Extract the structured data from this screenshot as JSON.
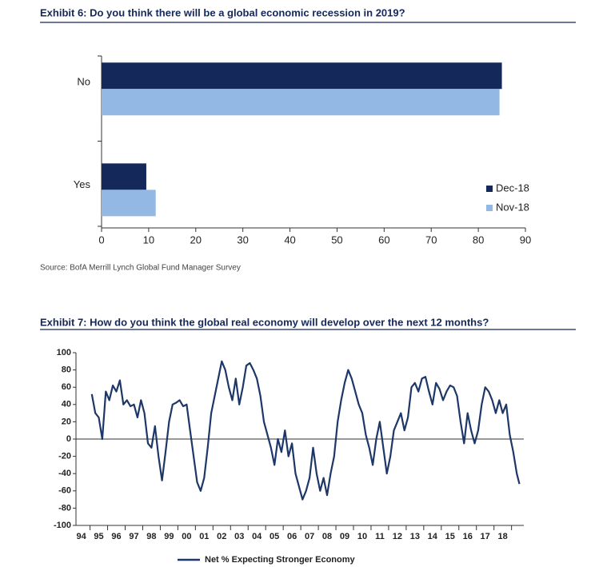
{
  "chart_data": [
    {
      "type": "barh",
      "title": "Exhibit 6: Do you think there will be a global economic recession in 2019?",
      "source": "Source: BofA Merrill Lynch Global Fund Manager Survey",
      "categories": [
        "No",
        "Yes"
      ],
      "series": [
        {
          "name": "Dec-18",
          "color": "#14285a",
          "values": [
            85,
            9.5
          ]
        },
        {
          "name": "Nov-18",
          "color": "#94b8e4",
          "values": [
            84.5,
            11.5
          ]
        }
      ],
      "xlim": [
        0,
        90
      ],
      "xticks": [
        0,
        10,
        20,
        30,
        40,
        50,
        60,
        70,
        80,
        90
      ],
      "legend": "lower right"
    },
    {
      "type": "line",
      "title": "Exhibit 7: How do you think the global real economy will develop over the next 12 months?",
      "x": [
        1994.6,
        1994.8,
        1995.0,
        1995.2,
        1995.4,
        1995.6,
        1995.8,
        1996.0,
        1996.2,
        1996.4,
        1996.6,
        1996.8,
        1997.0,
        1997.2,
        1997.4,
        1997.6,
        1997.8,
        1998.0,
        1998.2,
        1998.4,
        1998.6,
        1998.8,
        1999.0,
        1999.2,
        1999.4,
        1999.6,
        1999.8,
        2000.0,
        2000.2,
        2000.4,
        2000.6,
        2000.8,
        2001.0,
        2001.2,
        2001.4,
        2001.6,
        2001.8,
        2002.0,
        2002.2,
        2002.4,
        2002.6,
        2002.8,
        2003.0,
        2003.2,
        2003.4,
        2003.6,
        2003.8,
        2004.0,
        2004.2,
        2004.4,
        2004.6,
        2004.8,
        2005.0,
        2005.2,
        2005.4,
        2005.6,
        2005.8,
        2006.0,
        2006.2,
        2006.4,
        2006.6,
        2006.8,
        2007.0,
        2007.2,
        2007.4,
        2007.6,
        2007.8,
        2008.0,
        2008.2,
        2008.4,
        2008.6,
        2008.8,
        2009.0,
        2009.2,
        2009.4,
        2009.6,
        2009.8,
        2010.0,
        2010.2,
        2010.4,
        2010.6,
        2010.8,
        2011.0,
        2011.2,
        2011.4,
        2011.6,
        2011.8,
        2012.0,
        2012.2,
        2012.4,
        2012.6,
        2012.8,
        2013.0,
        2013.2,
        2013.4,
        2013.6,
        2013.8,
        2014.0,
        2014.2,
        2014.4,
        2014.6,
        2014.8,
        2015.0,
        2015.2,
        2015.4,
        2015.6,
        2015.8,
        2016.0,
        2016.2,
        2016.4,
        2016.6,
        2016.8,
        2017.0,
        2017.2,
        2017.4,
        2017.6,
        2017.8,
        2018.0,
        2018.2,
        2018.4,
        2018.6,
        2018.8,
        2018.95
      ],
      "series": [
        {
          "name": "Net % Expecting Stronger Economy",
          "color": "#1c3768",
          "values": [
            52,
            30,
            25,
            0,
            55,
            45,
            62,
            55,
            68,
            40,
            45,
            38,
            40,
            25,
            45,
            30,
            -5,
            -10,
            15,
            -20,
            -48,
            -15,
            20,
            40,
            42,
            45,
            38,
            40,
            10,
            -20,
            -50,
            -60,
            -45,
            -10,
            30,
            50,
            70,
            90,
            80,
            60,
            45,
            70,
            40,
            60,
            85,
            88,
            80,
            70,
            50,
            20,
            5,
            -10,
            -30,
            0,
            -15,
            10,
            -20,
            -5,
            -40,
            -55,
            -70,
            -60,
            -45,
            -10,
            -40,
            -60,
            -45,
            -65,
            -40,
            -20,
            20,
            45,
            65,
            80,
            70,
            55,
            40,
            30,
            5,
            -10,
            -30,
            0,
            20,
            -10,
            -40,
            -20,
            10,
            20,
            30,
            10,
            25,
            60,
            65,
            55,
            70,
            72,
            55,
            40,
            65,
            58,
            45,
            55,
            62,
            60,
            50,
            20,
            -5,
            30,
            10,
            -5,
            10,
            40,
            60,
            55,
            45,
            30,
            45,
            30,
            40,
            5,
            -15,
            -40,
            -52
          ]
        }
      ],
      "xlim": [
        1993.7,
        2019.2
      ],
      "xticks": [
        {
          "value": 1994,
          "label": "94"
        },
        {
          "value": 1995,
          "label": "95"
        },
        {
          "value": 1996,
          "label": "96"
        },
        {
          "value": 1997,
          "label": "97"
        },
        {
          "value": 1998,
          "label": "98"
        },
        {
          "value": 1999,
          "label": "99"
        },
        {
          "value": 2000,
          "label": "00"
        },
        {
          "value": 2001,
          "label": "01"
        },
        {
          "value": 2002,
          "label": "02"
        },
        {
          "value": 2003,
          "label": "03"
        },
        {
          "value": 2004,
          "label": "04"
        },
        {
          "value": 2005,
          "label": "05"
        },
        {
          "value": 2006,
          "label": "06"
        },
        {
          "value": 2007,
          "label": "07"
        },
        {
          "value": 2008,
          "label": "08"
        },
        {
          "value": 2009,
          "label": "09"
        },
        {
          "value": 2010,
          "label": "10"
        },
        {
          "value": 2011,
          "label": "11"
        },
        {
          "value": 2012,
          "label": "12"
        },
        {
          "value": 2013,
          "label": "13"
        },
        {
          "value": 2014,
          "label": "14"
        },
        {
          "value": 2015,
          "label": "15"
        },
        {
          "value": 2016,
          "label": "16"
        },
        {
          "value": 2017,
          "label": "17"
        },
        {
          "value": 2018,
          "label": "18"
        }
      ],
      "ylim": [
        -100,
        100
      ],
      "yticks": [
        -100,
        -80,
        -60,
        -40,
        -20,
        0,
        20,
        40,
        60,
        80,
        100
      ],
      "legend": "bottom"
    }
  ]
}
